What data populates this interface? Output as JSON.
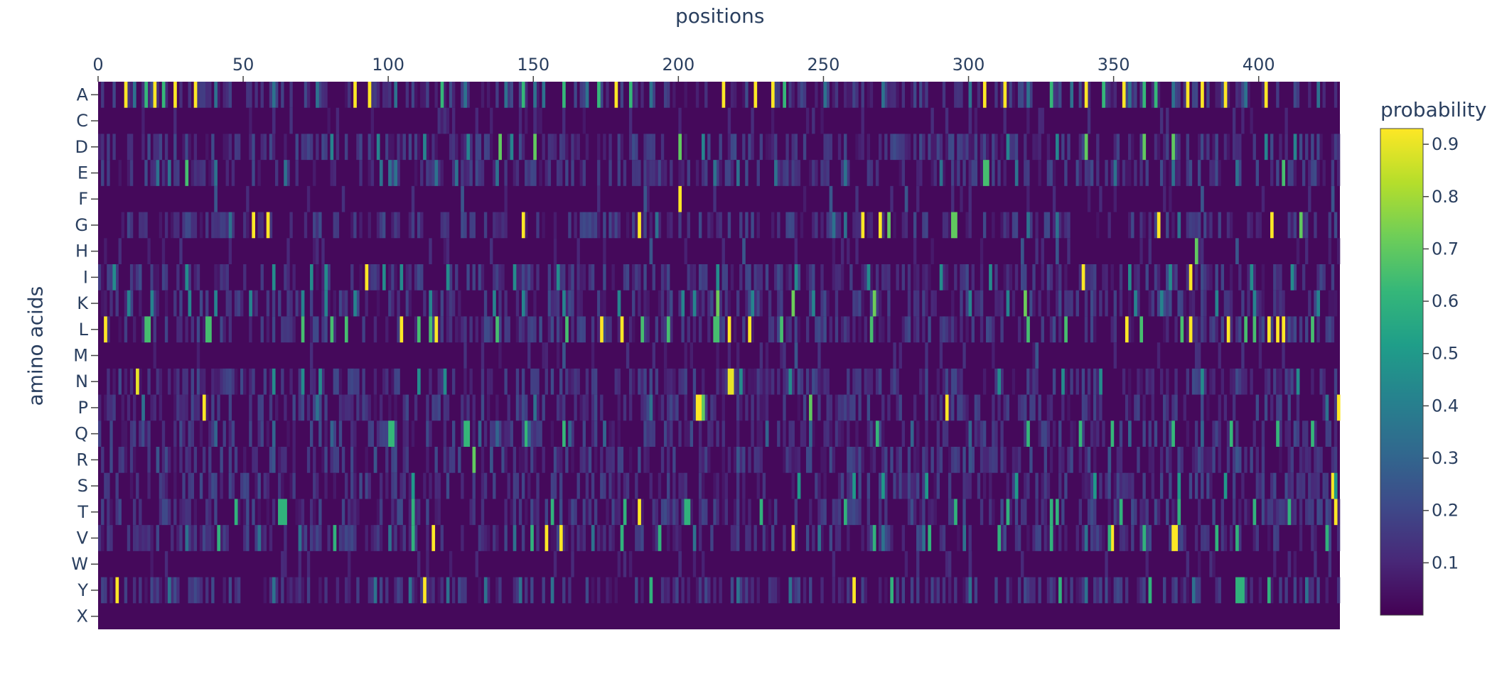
{
  "chart_data": {
    "type": "heatmap",
    "xlabel": "positions",
    "ylabel": "amino acids",
    "x_axis_side": "top",
    "x_range": [
      0,
      428
    ],
    "x_ticks": [
      0,
      50,
      100,
      150,
      200,
      250,
      300,
      350,
      400
    ],
    "y_categories": [
      "A",
      "C",
      "D",
      "E",
      "F",
      "G",
      "H",
      "I",
      "K",
      "L",
      "M",
      "N",
      "P",
      "Q",
      "R",
      "S",
      "T",
      "V",
      "W",
      "Y",
      "X"
    ],
    "colorscale": "viridis",
    "colorscale_stops": [
      "#440154",
      "#482878",
      "#3e4989",
      "#31688e",
      "#26828e",
      "#1f9e89",
      "#35b779",
      "#6ece58",
      "#b5de2b",
      "#fde725"
    ],
    "z_range": [
      0,
      0.93
    ],
    "colorbar": {
      "title": "probability",
      "ticks": [
        0.1,
        0.2,
        0.3,
        0.4,
        0.5,
        0.6,
        0.7,
        0.8,
        0.9
      ]
    },
    "background_level": 0.02,
    "peaks": [
      {
        "aa": "A",
        "positions": [
          9,
          19,
          26,
          33,
          88,
          93,
          178,
          215,
          226,
          232,
          305,
          312,
          340,
          353,
          375,
          380,
          388,
          402
        ],
        "value": 0.93
      },
      {
        "aa": "A",
        "positions": [
          16,
          22,
          118,
          146,
          160,
          172,
          183,
          236,
          328,
          346,
          360,
          364
        ],
        "value": 0.62
      },
      {
        "aa": "A",
        "positions": [
          12,
          40,
          60,
          75,
          102,
          126,
          140,
          150,
          153,
          168,
          190,
          250,
          270,
          300,
          320,
          335,
          355,
          370,
          395,
          420
        ],
        "value": 0.35
      },
      {
        "aa": "C",
        "positions": [
          60,
          150,
          300
        ],
        "value": 0.12
      },
      {
        "aa": "D",
        "positions": [
          138,
          150,
          200,
          340,
          360,
          370
        ],
        "value": 0.7
      },
      {
        "aa": "D",
        "positions": [
          80,
          96,
          112,
          127,
          142,
          208,
          313,
          330,
          402,
          412
        ],
        "value": 0.42
      },
      {
        "aa": "E",
        "positions": [
          30,
          305,
          306,
          408
        ],
        "value": 0.65
      },
      {
        "aa": "E",
        "positions": [
          20,
          24,
          40,
          64,
          97,
          100,
          102,
          116,
          123,
          137,
          212,
          220,
          233,
          257,
          290,
          316,
          350,
          370,
          392
        ],
        "value": 0.35
      },
      {
        "aa": "F",
        "positions": [
          200
        ],
        "value": 0.93
      },
      {
        "aa": "F",
        "positions": [
          40,
          125,
          188,
          252,
          278,
          380,
          425
        ],
        "value": 0.25
      },
      {
        "aa": "G",
        "positions": [
          53,
          58,
          146,
          186,
          263,
          269,
          365,
          404
        ],
        "value": 0.93
      },
      {
        "aa": "G",
        "positions": [
          272,
          294,
          295,
          414
        ],
        "value": 0.7
      },
      {
        "aa": "G",
        "positions": [
          45,
          192,
          253,
          257,
          320,
          330,
          372
        ],
        "value": 0.35
      },
      {
        "aa": "H",
        "positions": [
          378
        ],
        "value": 0.7
      },
      {
        "aa": "H",
        "positions": [
          190,
          222,
          318,
          330,
          392
        ],
        "value": 0.25
      },
      {
        "aa": "I",
        "positions": [
          92,
          339,
          376
        ],
        "value": 0.93
      },
      {
        "aa": "I",
        "positions": [
          5,
          30,
          60,
          73,
          78,
          98,
          104,
          120,
          143,
          158,
          213,
          240,
          265,
          290,
          307,
          355,
          369,
          397,
          411
        ],
        "value": 0.45
      },
      {
        "aa": "K",
        "positions": [
          213,
          239,
          267,
          319
        ],
        "value": 0.72
      },
      {
        "aa": "K",
        "positions": [
          10,
          18,
          31,
          40,
          52,
          70,
          78,
          88,
          114,
          136,
          146,
          160,
          179,
          201,
          205,
          225,
          246,
          300,
          313,
          357,
          366,
          385,
          398,
          420
        ],
        "value": 0.42
      },
      {
        "aa": "L",
        "positions": [
          2,
          104,
          116,
          173,
          180,
          217,
          224,
          354,
          376,
          389,
          403,
          406,
          408
        ],
        "value": 0.93
      },
      {
        "aa": "L",
        "positions": [
          16,
          17,
          37,
          38,
          70,
          80,
          85,
          110,
          114,
          137,
          161,
          187,
          196,
          212,
          213,
          235,
          266,
          320,
          333,
          359,
          373,
          395,
          398,
          418
        ],
        "value": 0.65
      },
      {
        "aa": "M",
        "positions": [
          160,
          240,
          323
        ],
        "value": 0.25
      },
      {
        "aa": "N",
        "positions": [
          13,
          217,
          218
        ],
        "value": 0.9
      },
      {
        "aa": "N",
        "positions": [
          60,
          70,
          76,
          110,
          119,
          221,
          238,
          310,
          332,
          345,
          380,
          413
        ],
        "value": 0.45
      },
      {
        "aa": "P",
        "positions": [
          36,
          206,
          207,
          292,
          427
        ],
        "value": 0.93
      },
      {
        "aa": "P",
        "positions": [
          208,
          245
        ],
        "value": 0.7
      },
      {
        "aa": "P",
        "positions": [
          15,
          75,
          150,
          190,
          423
        ],
        "value": 0.35
      },
      {
        "aa": "Q",
        "positions": [
          100,
          101,
          126,
          127,
          147,
          160,
          268,
          320,
          338,
          349,
          370,
          390,
          406,
          418
        ],
        "value": 0.62
      },
      {
        "aa": "Q",
        "positions": [
          40,
          60,
          80,
          131,
          137,
          148,
          162,
          174,
          230,
          245,
          280,
          300,
          355,
          380
        ],
        "value": 0.3
      },
      {
        "aa": "R",
        "positions": [
          129
        ],
        "value": 0.7
      },
      {
        "aa": "R",
        "positions": [
          20,
          60,
          95,
          135,
          220,
          300,
          348,
          392
        ],
        "value": 0.25
      },
      {
        "aa": "S",
        "positions": [
          425
        ],
        "value": 0.93
      },
      {
        "aa": "S",
        "positions": [
          108,
          241,
          260,
          270,
          285,
          316,
          343,
          372,
          388,
          426
        ],
        "value": 0.5
      },
      {
        "aa": "T",
        "positions": [
          186,
          426
        ],
        "value": 0.93
      },
      {
        "aa": "T",
        "positions": [
          47,
          62,
          63,
          64,
          108,
          156,
          181,
          202,
          203,
          228,
          257,
          295,
          313,
          328,
          330,
          352,
          372,
          398,
          410
        ],
        "value": 0.6
      },
      {
        "aa": "V",
        "positions": [
          115,
          154,
          159,
          239,
          349,
          370,
          371
        ],
        "value": 0.93
      },
      {
        "aa": "V",
        "positions": [
          41,
          81,
          108,
          149,
          180,
          193,
          267,
          286,
          310,
          328,
          348,
          360,
          385,
          392,
          423
        ],
        "value": 0.6
      },
      {
        "aa": "V",
        "positions": [
          30,
          55,
          69,
          100,
          143,
          170,
          205,
          248,
          270,
          284,
          298,
          340
        ],
        "value": 0.35
      },
      {
        "aa": "W",
        "positions": [
          200,
          300,
          410
        ],
        "value": 0.12
      },
      {
        "aa": "Y",
        "positions": [
          6,
          112,
          260
        ],
        "value": 0.93
      },
      {
        "aa": "Y",
        "positions": [
          190,
          273,
          331,
          362,
          392,
          393,
          394,
          403
        ],
        "value": 0.6
      },
      {
        "aa": "Y",
        "positions": [
          24,
          60,
          95,
          107,
          120,
          133,
          145,
          156,
          220,
          238,
          300,
          340,
          377,
          416
        ],
        "value": 0.35
      },
      {
        "aa": "X",
        "positions": [],
        "value": 0
      }
    ]
  }
}
